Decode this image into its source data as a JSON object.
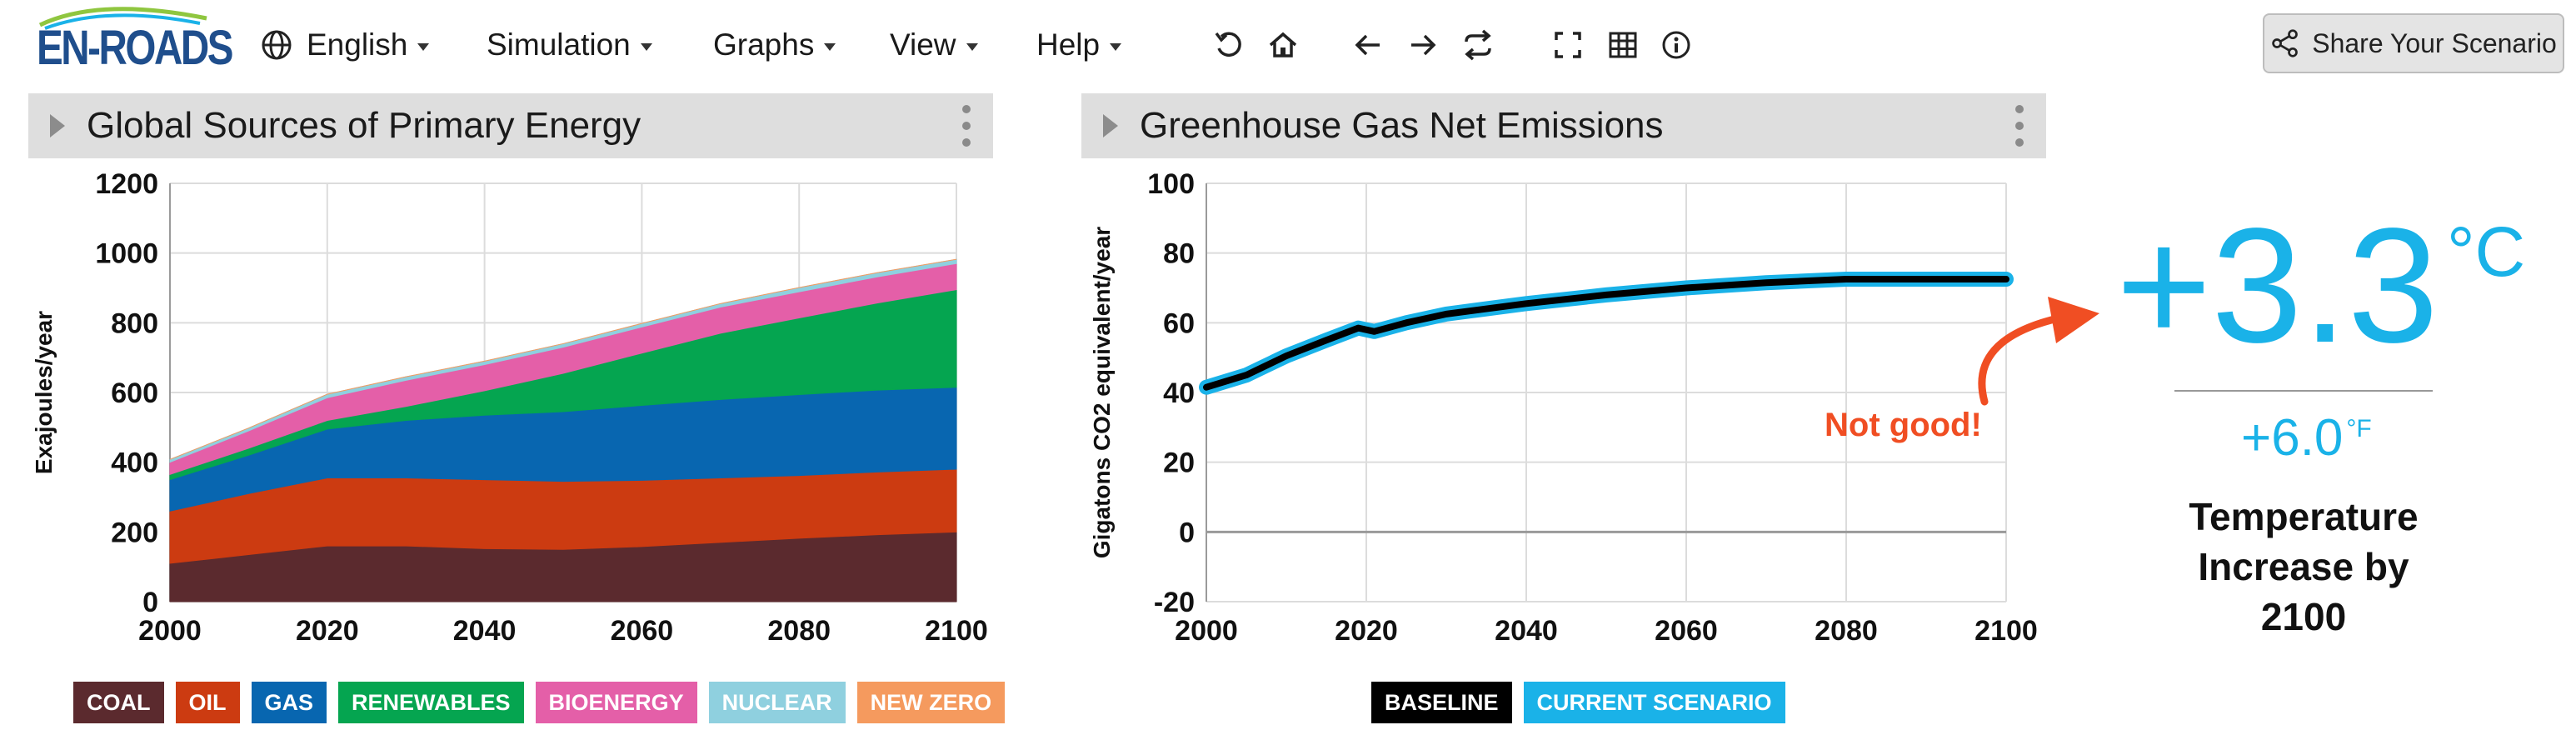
{
  "logo": {
    "text": "EN-ROADS"
  },
  "menu": {
    "language": "English",
    "simulation": "Simulation",
    "graphs": "Graphs",
    "view": "View",
    "help": "Help"
  },
  "toolbar_icons": [
    "undo-icon",
    "home-icon",
    "back-arrow-icon",
    "forward-arrow-icon",
    "compare-icon",
    "fullscreen-icon",
    "grid-icon",
    "info-icon"
  ],
  "share": {
    "label": "Share Your Scenario"
  },
  "left_panel": {
    "title": "Global Sources of Primary Energy",
    "legend": [
      {
        "label": "COAL",
        "color": "#5b2a2e"
      },
      {
        "label": "OIL",
        "color": "#cc3b11"
      },
      {
        "label": "GAS",
        "color": "#0866b0"
      },
      {
        "label": "RENEWABLES",
        "color": "#05a550"
      },
      {
        "label": "BIOENERGY",
        "color": "#e45fa8"
      },
      {
        "label": "NUCLEAR",
        "color": "#8fd0df"
      },
      {
        "label": "NEW ZERO",
        "color": "#f59a5e"
      }
    ]
  },
  "right_panel": {
    "title": "Greenhouse Gas Net Emissions",
    "legend": [
      {
        "label": "BASELINE",
        "color": "#000000"
      },
      {
        "label": "CURRENT SCENARIO",
        "color": "#1ab2e8"
      }
    ]
  },
  "annotation": {
    "text": "Not good!"
  },
  "temperature": {
    "celsius": "+3.3",
    "celsius_unit": "°C",
    "fahrenheit": "+6.0",
    "fahrenheit_unit": "°F",
    "caption_line1": "Temperature",
    "caption_line2": "Increase by",
    "caption_line3": "2100"
  },
  "chart_data": [
    {
      "type": "area",
      "stacked": true,
      "title": "Global Sources of Primary Energy",
      "xlabel": "",
      "ylabel": "Exajoules/year",
      "xlim": [
        2000,
        2100
      ],
      "ylim": [
        0,
        1200
      ],
      "xticks": [
        2000,
        2020,
        2040,
        2060,
        2080,
        2100
      ],
      "yticks": [
        0,
        200,
        400,
        600,
        800,
        1000,
        1200
      ],
      "grid": true,
      "x": [
        2000,
        2010,
        2020,
        2030,
        2040,
        2050,
        2060,
        2070,
        2080,
        2090,
        2100
      ],
      "series": [
        {
          "name": "COAL",
          "color": "#5b2a2e",
          "values": [
            110,
            135,
            160,
            160,
            152,
            150,
            158,
            170,
            182,
            192,
            200
          ]
        },
        {
          "name": "OIL",
          "color": "#cc3b11",
          "values": [
            150,
            175,
            195,
            195,
            198,
            195,
            190,
            185,
            180,
            180,
            180
          ]
        },
        {
          "name": "GAS",
          "color": "#0866b0",
          "values": [
            90,
            110,
            140,
            165,
            185,
            200,
            215,
            225,
            232,
            235,
            235
          ]
        },
        {
          "name": "RENEWABLES",
          "color": "#05a550",
          "values": [
            15,
            20,
            25,
            40,
            70,
            110,
            150,
            190,
            220,
            250,
            280
          ]
        },
        {
          "name": "BIOENERGY",
          "color": "#e45fa8",
          "values": [
            35,
            50,
            65,
            75,
            75,
            75,
            75,
            75,
            75,
            75,
            75
          ]
        },
        {
          "name": "NUCLEAR",
          "color": "#8fd0df",
          "values": [
            8,
            8,
            10,
            10,
            10,
            10,
            10,
            10,
            12,
            12,
            12
          ]
        },
        {
          "name": "NEW ZERO",
          "color": "#f59a5e",
          "values": [
            0,
            0,
            0,
            0,
            0,
            0,
            0,
            0,
            0,
            0,
            0
          ]
        }
      ]
    },
    {
      "type": "line",
      "title": "Greenhouse Gas Net Emissions",
      "xlabel": "",
      "ylabel": "Gigatons CO2 equivalent/year",
      "xlim": [
        2000,
        2100
      ],
      "ylim": [
        -20,
        100
      ],
      "xticks": [
        2000,
        2020,
        2040,
        2060,
        2080,
        2100
      ],
      "yticks": [
        -20,
        0,
        20,
        40,
        60,
        80,
        100
      ],
      "grid": true,
      "x": [
        2000,
        2005,
        2010,
        2015,
        2019,
        2021,
        2025,
        2030,
        2040,
        2050,
        2060,
        2070,
        2080,
        2090,
        2100
      ],
      "series": [
        {
          "name": "BASELINE",
          "color": "#000000",
          "values": [
            41.5,
            45,
            50.5,
            55,
            58.5,
            57.5,
            60,
            62.5,
            65.5,
            68,
            70,
            71.5,
            72.5,
            72.5,
            72.5
          ]
        },
        {
          "name": "CURRENT SCENARIO",
          "color": "#1ab2e8",
          "values": [
            41.5,
            45,
            50.5,
            55,
            58.5,
            57.5,
            60,
            62.5,
            65.5,
            68,
            70,
            71.5,
            72.5,
            72.5,
            72.5
          ]
        }
      ]
    }
  ]
}
